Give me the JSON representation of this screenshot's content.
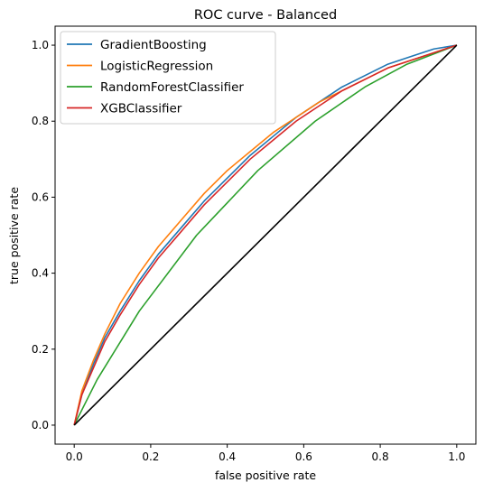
{
  "chart_data": {
    "type": "line",
    "title": "ROC curve - Balanced",
    "xlabel": "false positive rate",
    "ylabel": "true positive rate",
    "xlim": [
      -0.05,
      1.05
    ],
    "ylim": [
      -0.05,
      1.05
    ],
    "xticks": [
      0.0,
      0.2,
      0.4,
      0.6,
      0.8,
      1.0
    ],
    "yticks": [
      0.0,
      0.2,
      0.4,
      0.6,
      0.8,
      1.0
    ],
    "xtick_labels": [
      "0.0",
      "0.2",
      "0.4",
      "0.6",
      "0.8",
      "1.0"
    ],
    "ytick_labels": [
      "0.0",
      "0.2",
      "0.4",
      "0.6",
      "0.8",
      "1.0"
    ],
    "grid": false,
    "legend_position": "top-left",
    "series": [
      {
        "name": "GradientBoosting",
        "color": "#1f77b4",
        "x": [
          0,
          0.02,
          0.05,
          0.08,
          0.12,
          0.17,
          0.22,
          0.28,
          0.34,
          0.4,
          0.46,
          0.52,
          0.58,
          0.64,
          0.7,
          0.76,
          0.82,
          0.88,
          0.94,
          1.0
        ],
        "y": [
          0,
          0.08,
          0.16,
          0.23,
          0.3,
          0.38,
          0.45,
          0.52,
          0.59,
          0.65,
          0.71,
          0.76,
          0.81,
          0.85,
          0.89,
          0.92,
          0.95,
          0.97,
          0.99,
          1.0
        ]
      },
      {
        "name": "LogisticRegression",
        "color": "#ff7f0e",
        "x": [
          0,
          0.02,
          0.05,
          0.08,
          0.12,
          0.17,
          0.22,
          0.28,
          0.34,
          0.4,
          0.46,
          0.52,
          0.58,
          0.64,
          0.7,
          0.76,
          0.82,
          0.88,
          0.94,
          1.0
        ],
        "y": [
          0,
          0.09,
          0.17,
          0.24,
          0.32,
          0.4,
          0.47,
          0.54,
          0.61,
          0.67,
          0.72,
          0.77,
          0.81,
          0.85,
          0.88,
          0.91,
          0.94,
          0.96,
          0.98,
          1.0
        ]
      },
      {
        "name": "RandomForestClassifier",
        "color": "#2ca02c",
        "x": [
          0,
          0.06,
          0.17,
          0.32,
          0.48,
          0.63,
          0.76,
          0.87,
          1.0
        ],
        "y": [
          0,
          0.12,
          0.3,
          0.5,
          0.67,
          0.8,
          0.89,
          0.95,
          1.0
        ]
      },
      {
        "name": "XGBClassifier",
        "color": "#d62728",
        "x": [
          0,
          0.02,
          0.05,
          0.08,
          0.12,
          0.17,
          0.22,
          0.28,
          0.34,
          0.4,
          0.46,
          0.52,
          0.58,
          0.64,
          0.7,
          0.76,
          0.82,
          0.88,
          0.94,
          1.0
        ],
        "y": [
          0,
          0.08,
          0.15,
          0.22,
          0.29,
          0.37,
          0.44,
          0.51,
          0.58,
          0.64,
          0.7,
          0.75,
          0.8,
          0.84,
          0.88,
          0.91,
          0.94,
          0.96,
          0.98,
          1.0
        ]
      },
      {
        "name": "",
        "color": "#000000",
        "legend": false,
        "x": [
          0,
          1
        ],
        "y": [
          0,
          1
        ]
      }
    ]
  }
}
